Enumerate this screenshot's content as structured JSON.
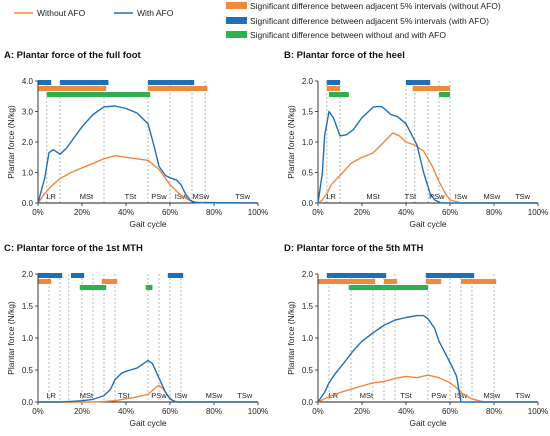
{
  "legend": {
    "without_afo": "Without AFO",
    "with_afo": "With AFO",
    "sig_without": "Significant difference between adjacent 5% intervals (without AFO)",
    "sig_with": "Significant difference between adjacent 5% intervals (with AFO)",
    "sig_between": "Significant difference between without and with AFO"
  },
  "colors": {
    "without": "#f0883e",
    "with": "#1f6fb5",
    "between": "#2eb04f",
    "dash": "#9a9a9a"
  },
  "chart_data": [
    {
      "type": "line",
      "title": "A: Plantar force of the full foot",
      "xlabel": "Gait cycle",
      "ylabel": "Plantar force (N/kg)",
      "xlim": [
        0,
        100
      ],
      "ylim": [
        0,
        4
      ],
      "yticks": [
        "0.0",
        "1.0",
        "2.0",
        "3.0",
        "4.0"
      ],
      "xticks": [
        "0%",
        "20%",
        "40%",
        "60%",
        "80%",
        "100%"
      ],
      "phase_lines": [
        4,
        10,
        30,
        50,
        60,
        70,
        76
      ],
      "phases": [
        {
          "label": "LR",
          "x": 6
        },
        {
          "label": "MSt",
          "x": 22
        },
        {
          "label": "TSt",
          "x": 42
        },
        {
          "label": "PSw",
          "x": 55
        },
        {
          "label": "ISw",
          "x": 65
        },
        {
          "label": "MSw",
          "x": 74
        },
        {
          "label": "TSw",
          "x": 93
        }
      ],
      "sig_with": [
        [
          0,
          6
        ],
        [
          10,
          32
        ],
        [
          50,
          71
        ]
      ],
      "sig_without": [
        [
          0,
          31
        ],
        [
          50,
          77
        ]
      ],
      "sig_between": [
        [
          4,
          51
        ]
      ],
      "series": [
        {
          "name": "Without AFO",
          "x": [
            0,
            3,
            6,
            10,
            15,
            20,
            25,
            30,
            35,
            40,
            45,
            50,
            55,
            60,
            65,
            68,
            70,
            73,
            76,
            100
          ],
          "y": [
            0,
            0.3,
            0.55,
            0.8,
            1.0,
            1.15,
            1.3,
            1.45,
            1.55,
            1.5,
            1.45,
            1.4,
            1.1,
            0.6,
            0.25,
            0.12,
            0.05,
            0.02,
            0,
            0
          ]
        },
        {
          "name": "With AFO",
          "x": [
            0,
            3,
            5,
            7,
            9,
            10,
            13,
            16,
            20,
            25,
            30,
            35,
            40,
            45,
            50,
            53,
            55,
            58,
            61,
            63,
            65,
            67,
            69,
            71,
            100
          ],
          "y": [
            0,
            0.8,
            1.65,
            1.75,
            1.65,
            1.6,
            1.8,
            2.1,
            2.5,
            2.9,
            3.15,
            3.18,
            3.1,
            2.95,
            2.6,
            1.8,
            1.2,
            0.9,
            0.8,
            0.75,
            0.6,
            0.3,
            0.1,
            0.02,
            0
          ]
        }
      ]
    },
    {
      "type": "line",
      "title": "B: Plantar force of the heel",
      "xlabel": "Gait cycle",
      "ylabel": "Plantar force (N/kg)",
      "xlim": [
        0,
        100
      ],
      "ylim": [
        0,
        2
      ],
      "yticks": [
        "0.0",
        "0.5",
        "1.0",
        "1.5",
        "2.0"
      ],
      "xticks": [
        "0%",
        "20%",
        "40%",
        "60%",
        "80%",
        "100%"
      ],
      "phase_lines": [
        4,
        10,
        40,
        44,
        50,
        55,
        60
      ],
      "phases": [
        {
          "label": "LR",
          "x": 6
        },
        {
          "label": "MSt",
          "x": 25
        },
        {
          "label": "TSt",
          "x": 42
        },
        {
          "label": "PSw",
          "x": 54
        },
        {
          "label": "ISw",
          "x": 65
        },
        {
          "label": "MSw",
          "x": 79
        },
        {
          "label": "TSw",
          "x": 93
        }
      ],
      "sig_with": [
        [
          4,
          10
        ],
        [
          40,
          51
        ]
      ],
      "sig_without": [
        [
          4,
          10
        ],
        [
          43,
          60
        ]
      ],
      "sig_between": [
        [
          5,
          14
        ],
        [
          55,
          60
        ]
      ],
      "series": [
        {
          "name": "Without AFO",
          "x": [
            0,
            2,
            4,
            6,
            10,
            15,
            20,
            25,
            30,
            34,
            37,
            40,
            44,
            48,
            52,
            55,
            58,
            60,
            65,
            100
          ],
          "y": [
            0,
            0.05,
            0.15,
            0.3,
            0.45,
            0.65,
            0.75,
            0.82,
            1.0,
            1.15,
            1.1,
            1.0,
            0.95,
            0.85,
            0.6,
            0.35,
            0.15,
            0.05,
            0,
            0
          ]
        },
        {
          "name": "With AFO",
          "x": [
            0,
            2,
            3,
            5,
            7,
            10,
            13,
            16,
            20,
            23,
            25,
            27,
            29,
            31,
            33,
            36,
            40,
            45,
            48,
            51,
            53,
            56,
            100
          ],
          "y": [
            0,
            0.5,
            1.1,
            1.5,
            1.4,
            1.1,
            1.12,
            1.2,
            1.4,
            1.5,
            1.57,
            1.58,
            1.58,
            1.52,
            1.45,
            1.42,
            1.3,
            0.95,
            0.5,
            0.15,
            0.05,
            0,
            0
          ]
        }
      ]
    },
    {
      "type": "line",
      "title": "C: Plantar force of the 1st MTH",
      "xlabel": "Gait cycle",
      "ylabel": "Plantar force (N/kg)",
      "xlim": [
        0,
        100
      ],
      "ylim": [
        0,
        2
      ],
      "yticks": [
        "0.0",
        "0.5",
        "1.0",
        "1.5",
        "2.0"
      ],
      "xticks": [
        "0%",
        "20%",
        "40%",
        "60%",
        "80%",
        "100%"
      ],
      "phase_lines": [
        5,
        10,
        14,
        20,
        25,
        30,
        35,
        50,
        55,
        60,
        65
      ],
      "phases": [
        {
          "label": "LR",
          "x": 6
        },
        {
          "label": "MSt",
          "x": 22
        },
        {
          "label": "TSt",
          "x": 39
        },
        {
          "label": "PSw",
          "x": 55
        },
        {
          "label": "ISw",
          "x": 65
        },
        {
          "label": "MSw",
          "x": 80
        },
        {
          "label": "TSw",
          "x": 94
        }
      ],
      "sig_with": [
        [
          0,
          11
        ],
        [
          15,
          21
        ],
        [
          59,
          66
        ]
      ],
      "sig_without": [
        [
          0,
          6
        ],
        [
          29,
          36
        ]
      ],
      "sig_between": [
        [
          19,
          31
        ],
        [
          49,
          52
        ]
      ],
      "series": [
        {
          "name": "Without AFO",
          "x": [
            0,
            10,
            20,
            25,
            30,
            35,
            40,
            45,
            50,
            52,
            54,
            55,
            57,
            59,
            61,
            63,
            100
          ],
          "y": [
            0,
            0,
            0,
            0,
            0.01,
            0.02,
            0.05,
            0.08,
            0.12,
            0.18,
            0.24,
            0.26,
            0.2,
            0.1,
            0.03,
            0,
            0
          ]
        },
        {
          "name": "With AFO",
          "x": [
            0,
            10,
            15,
            20,
            25,
            30,
            33,
            35,
            38,
            40,
            42,
            45,
            48,
            50,
            52,
            54,
            56,
            58,
            60,
            62,
            64,
            100
          ],
          "y": [
            0,
            0,
            0.01,
            0.02,
            0.04,
            0.1,
            0.2,
            0.35,
            0.45,
            0.48,
            0.5,
            0.53,
            0.6,
            0.65,
            0.6,
            0.45,
            0.3,
            0.15,
            0.05,
            0.01,
            0,
            0
          ]
        }
      ]
    },
    {
      "type": "line",
      "title": "D: Plantar force of the 5th MTH",
      "xlabel": "Gait cycle",
      "ylabel": "Plantar force (N/kg)",
      "xlim": [
        0,
        100
      ],
      "ylim": [
        0,
        2
      ],
      "yticks": [
        "0.0",
        "0.5",
        "1.0",
        "1.5",
        "2.0"
      ],
      "xticks": [
        "0%",
        "20%",
        "40%",
        "60%",
        "80%",
        "100%"
      ],
      "phase_lines": [
        5,
        15,
        25,
        30,
        35,
        50,
        60,
        65,
        70,
        80
      ],
      "phases": [
        {
          "label": "LR",
          "x": 7
        },
        {
          "label": "MSt",
          "x": 22
        },
        {
          "label": "TSt",
          "x": 40
        },
        {
          "label": "PSw",
          "x": 55
        },
        {
          "label": "ISw",
          "x": 65
        },
        {
          "label": "MSw",
          "x": 79
        },
        {
          "label": "TSw",
          "x": 93
        }
      ],
      "sig_with": [
        [
          4,
          31
        ],
        [
          49,
          71
        ]
      ],
      "sig_without": [
        [
          0,
          26
        ],
        [
          30,
          36
        ],
        [
          49,
          56
        ],
        [
          65,
          81
        ]
      ],
      "sig_between": [
        [
          14,
          50
        ]
      ],
      "series": [
        {
          "name": "Without AFO",
          "x": [
            0,
            3,
            6,
            10,
            15,
            20,
            25,
            30,
            35,
            40,
            45,
            50,
            55,
            60,
            63,
            66,
            70,
            73,
            76,
            100
          ],
          "y": [
            0,
            0.05,
            0.1,
            0.15,
            0.2,
            0.25,
            0.3,
            0.32,
            0.37,
            0.4,
            0.38,
            0.42,
            0.38,
            0.3,
            0.22,
            0.12,
            0.05,
            0.02,
            0,
            0
          ]
        },
        {
          "name": "With AFO",
          "x": [
            0,
            3,
            5,
            8,
            12,
            16,
            20,
            25,
            30,
            35,
            40,
            45,
            48,
            50,
            53,
            55,
            58,
            61,
            63,
            64,
            65,
            100
          ],
          "y": [
            0,
            0.15,
            0.3,
            0.45,
            0.62,
            0.8,
            0.95,
            1.08,
            1.2,
            1.28,
            1.32,
            1.35,
            1.35,
            1.3,
            1.15,
            0.95,
            0.75,
            0.55,
            0.4,
            0.2,
            0,
            0
          ]
        }
      ]
    }
  ]
}
